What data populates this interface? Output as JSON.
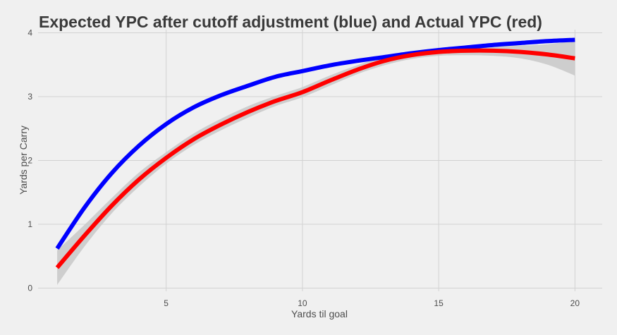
{
  "chart_data": {
    "type": "line",
    "title": "Expected YPC after cutoff adjustment (blue) and Actual YPC (red)",
    "xlabel": "Yards til goal",
    "ylabel": "Yards per Carry",
    "xlim": [
      0.3,
      21.0
    ],
    "ylim": [
      -0.05,
      4.05
    ],
    "x_ticks": [
      5,
      10,
      15,
      20
    ],
    "y_ticks": [
      0,
      1,
      2,
      3,
      4
    ],
    "grid": true,
    "x": [
      1,
      2,
      3,
      4,
      5,
      6,
      7,
      8,
      9,
      10,
      11,
      12,
      13,
      14,
      15,
      16,
      17,
      18,
      19,
      20
    ],
    "series": [
      {
        "color": "#0000ff",
        "values": [
          0.62,
          1.26,
          1.8,
          2.23,
          2.57,
          2.83,
          3.02,
          3.17,
          3.31,
          3.4,
          3.49,
          3.56,
          3.62,
          3.68,
          3.73,
          3.77,
          3.81,
          3.84,
          3.87,
          3.89
        ],
        "ci_lower": [
          0.6,
          1.24,
          1.78,
          2.21,
          2.55,
          2.81,
          3.0,
          3.15,
          3.29,
          3.38,
          3.47,
          3.54,
          3.6,
          3.66,
          3.71,
          3.75,
          3.79,
          3.82,
          3.85,
          3.87
        ],
        "ci_upper": [
          0.64,
          1.28,
          1.82,
          2.25,
          2.59,
          2.85,
          3.04,
          3.19,
          3.33,
          3.42,
          3.51,
          3.58,
          3.64,
          3.7,
          3.75,
          3.79,
          3.83,
          3.86,
          3.89,
          3.91
        ]
      },
      {
        "color": "#ff0000",
        "values": [
          0.32,
          0.82,
          1.29,
          1.7,
          2.04,
          2.33,
          2.56,
          2.76,
          2.93,
          3.07,
          3.25,
          3.42,
          3.56,
          3.65,
          3.7,
          3.72,
          3.72,
          3.7,
          3.66,
          3.6
        ],
        "ci_lower": [
          0.05,
          0.65,
          1.17,
          1.59,
          1.95,
          2.24,
          2.47,
          2.67,
          2.85,
          2.99,
          3.17,
          3.35,
          3.49,
          3.59,
          3.64,
          3.65,
          3.64,
          3.6,
          3.5,
          3.33
        ],
        "ci_upper": [
          0.59,
          0.99,
          1.41,
          1.81,
          2.13,
          2.42,
          2.65,
          2.85,
          3.01,
          3.15,
          3.33,
          3.49,
          3.63,
          3.71,
          3.76,
          3.79,
          3.8,
          3.8,
          3.82,
          3.87
        ]
      }
    ],
    "band_color": "#c8c8c8"
  }
}
